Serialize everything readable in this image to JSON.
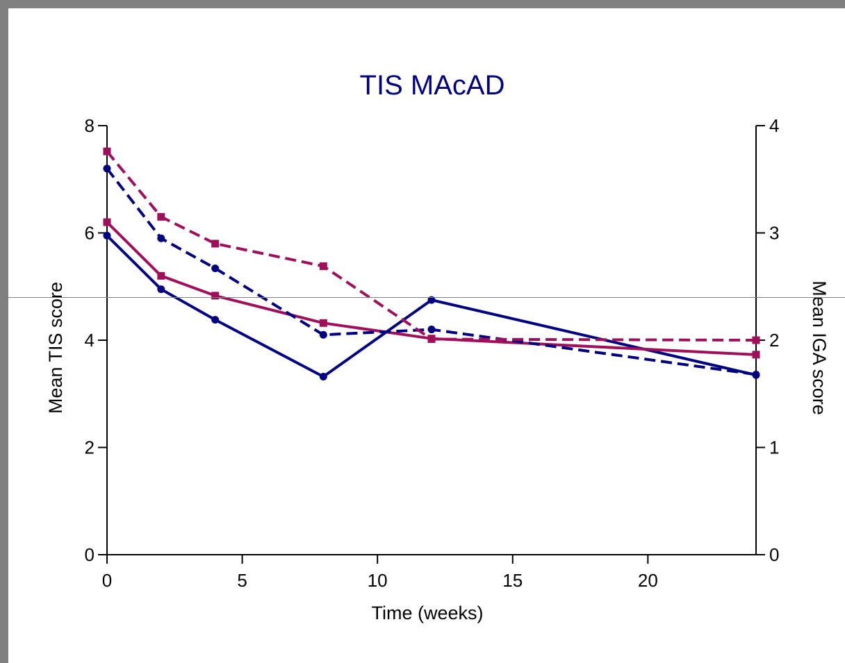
{
  "chart_data": {
    "type": "line",
    "title": "TIS MAcAD",
    "xlabel": "Time (weeks)",
    "ylabel_left": "Mean TIS score",
    "ylabel_right": "Mean IGA score",
    "xlim": [
      0,
      24
    ],
    "ylim_left": [
      0,
      8
    ],
    "ylim_right": [
      0,
      4
    ],
    "x_ticks": [
      0,
      5,
      10,
      15,
      20
    ],
    "y_ticks_left": [
      0,
      2,
      4,
      6,
      8
    ],
    "y_ticks_right": [
      0,
      1,
      2,
      3,
      4
    ],
    "grid": false,
    "series": [
      {
        "axis": "left",
        "color": "#000080",
        "line": "solid",
        "marker": "circle",
        "x": [
          0,
          2,
          4,
          8,
          12,
          24
        ],
        "values": [
          5.95,
          4.95,
          4.38,
          3.32,
          4.75,
          3.35
        ]
      },
      {
        "axis": "left",
        "color": "#A0105A",
        "line": "solid",
        "marker": "square",
        "x": [
          0,
          2,
          4,
          8,
          12,
          24
        ],
        "values": [
          6.2,
          5.2,
          4.83,
          4.32,
          4.03,
          3.73
        ]
      },
      {
        "axis": "right",
        "color": "#000080",
        "line": "dashed",
        "marker": "circle",
        "x": [
          0,
          2,
          4,
          8,
          12,
          24
        ],
        "values": [
          3.6,
          2.95,
          2.67,
          2.05,
          2.1,
          1.68
        ]
      },
      {
        "axis": "right",
        "color": "#A0105A",
        "line": "dashed",
        "marker": "square",
        "x": [
          0,
          2,
          4,
          8,
          12,
          24
        ],
        "values": [
          3.76,
          3.15,
          2.9,
          2.69,
          2.01,
          2.0
        ]
      }
    ]
  }
}
